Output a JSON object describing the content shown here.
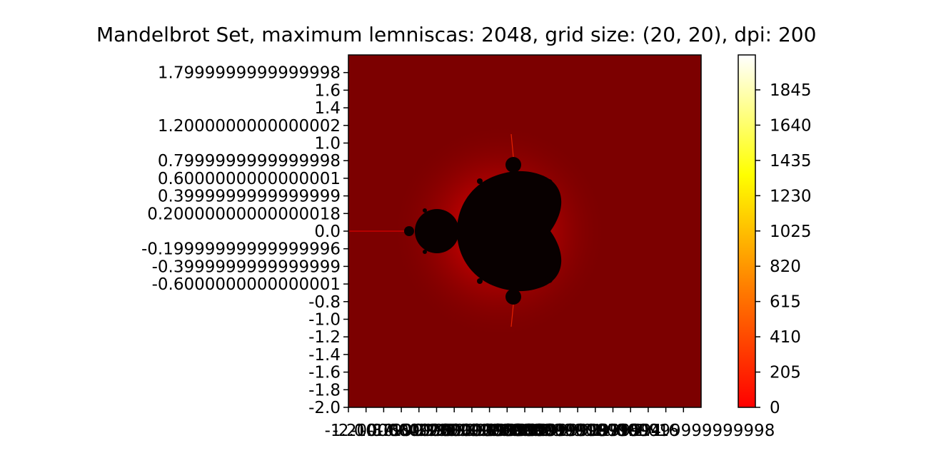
{
  "chart_data": {
    "type": "heatmap",
    "title": "Mandelbrot Set, maximum lemniscas: 2048, grid size: (20, 20), dpi: 200",
    "colormap": "hot",
    "colormap_stops": [
      "#000000",
      "#ff0000",
      "#ffff00",
      "#ffffff"
    ],
    "set_color": "#000000",
    "max_iterations": 2048,
    "xlim": [
      -2.0,
      2.0
    ],
    "ylim": [
      -2.0,
      2.0
    ],
    "y_ticks": [
      {
        "value": 1.8,
        "label": "1.7999999999999998"
      },
      {
        "value": 1.6,
        "label": "1.6"
      },
      {
        "value": 1.4,
        "label": "1.4"
      },
      {
        "value": 1.2,
        "label": "1.2000000000000002"
      },
      {
        "value": 1.0,
        "label": "1.0"
      },
      {
        "value": 0.8,
        "label": "0.7999999999999998"
      },
      {
        "value": 0.6,
        "label": "0.6000000000000001"
      },
      {
        "value": 0.4,
        "label": "0.3999999999999999"
      },
      {
        "value": 0.2,
        "label": "0.20000000000000018"
      },
      {
        "value": 0.0,
        "label": "0.0"
      },
      {
        "value": -0.2,
        "label": "-0.19999999999999996"
      },
      {
        "value": -0.4,
        "label": "-0.3999999999999999"
      },
      {
        "value": -0.6,
        "label": "-0.6000000000000001"
      },
      {
        "value": -0.8,
        "label": "-0.8"
      },
      {
        "value": -1.0,
        "label": "-1.0"
      },
      {
        "value": -1.2,
        "label": "-1.2"
      },
      {
        "value": -1.4,
        "label": "-1.4"
      },
      {
        "value": -1.6,
        "label": "-1.6"
      },
      {
        "value": -1.8,
        "label": "-1.8"
      },
      {
        "value": -2.0,
        "label": "-2.0"
      }
    ],
    "x_ticks": [
      {
        "value": -2.0,
        "label": "-2.0"
      },
      {
        "value": -1.8,
        "label": "-1.8"
      },
      {
        "value": -1.6,
        "label": "-1.6"
      },
      {
        "value": -1.4,
        "label": "-1.4"
      },
      {
        "value": -1.2,
        "label": "-1.2000000000000002"
      },
      {
        "value": -1.0,
        "label": "-1.0"
      },
      {
        "value": -0.8,
        "label": "-0.7999999999999998"
      },
      {
        "value": -0.6,
        "label": "-0.6000000000000001"
      },
      {
        "value": -0.4,
        "label": "-0.3999999999999999"
      },
      {
        "value": -0.2,
        "label": "-0.20000000000000018"
      },
      {
        "value": 0.0,
        "label": "0.0"
      },
      {
        "value": 0.2,
        "label": "0.19999999999999996"
      },
      {
        "value": 0.4,
        "label": "0.3999999999999999"
      },
      {
        "value": 0.6,
        "label": "0.6000000000000001"
      },
      {
        "value": 0.8,
        "label": "0.8"
      },
      {
        "value": 1.0,
        "label": "1.0"
      },
      {
        "value": 1.2,
        "label": "1.2"
      },
      {
        "value": 1.4,
        "label": "1.4"
      },
      {
        "value": 1.6,
        "label": "1.6"
      },
      {
        "value": 1.8,
        "label": "1.7999999999999998"
      }
    ],
    "colorbar": {
      "range": [
        0,
        2048
      ],
      "ticks": [
        0,
        205,
        410,
        615,
        820,
        1025,
        1230,
        1435,
        1640,
        1845
      ]
    },
    "grid": false,
    "legend": "none"
  }
}
